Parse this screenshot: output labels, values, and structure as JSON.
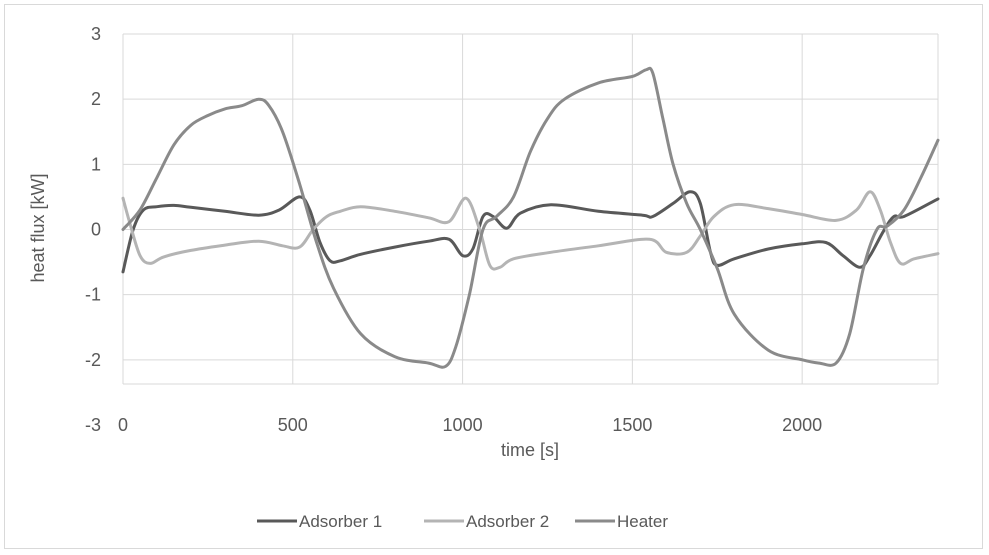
{
  "chart_data": {
    "type": "line",
    "title": "",
    "xlabel": "time [s]",
    "ylabel": "heat flux [kW]",
    "xlim": [
      0,
      2400
    ],
    "ylim": [
      -3,
      3
    ],
    "xticks": [
      0,
      500,
      1000,
      1500,
      2000
    ],
    "xtick_labels": [
      "0",
      "500",
      "1000",
      "1500",
      "2000"
    ],
    "yticks": [
      -3,
      -2,
      -1,
      0,
      1,
      2,
      3
    ],
    "ytick_labels": [
      "-3",
      "-2",
      "-1",
      "0",
      "1",
      "2",
      "3"
    ],
    "grid": true,
    "legend_position": "bottom",
    "series": [
      {
        "name": "Adsorber 1",
        "color": "#595959",
        "x": [
          0,
          30,
          60,
          100,
          150,
          200,
          300,
          400,
          460,
          520,
          550,
          580,
          610,
          640,
          700,
          800,
          900,
          960,
          1000,
          1030,
          1060,
          1090,
          1130,
          1170,
          1260,
          1400,
          1530,
          1560,
          1620,
          1670,
          1700,
          1730,
          1750,
          1800,
          1900,
          2000,
          2070,
          2120,
          2170,
          2200,
          2240,
          2270,
          2300,
          2400
        ],
        "y": [
          -0.65,
          0.0,
          0.3,
          0.35,
          0.37,
          0.34,
          0.28,
          0.22,
          0.3,
          0.5,
          0.3,
          -0.2,
          -0.48,
          -0.48,
          -0.38,
          -0.27,
          -0.18,
          -0.15,
          -0.4,
          -0.3,
          0.2,
          0.2,
          0.02,
          0.25,
          0.38,
          0.28,
          0.22,
          0.2,
          0.4,
          0.58,
          0.4,
          -0.35,
          -0.55,
          -0.45,
          -0.3,
          -0.22,
          -0.2,
          -0.4,
          -0.58,
          -0.4,
          -0.02,
          0.2,
          0.2,
          0.47
        ]
      },
      {
        "name": "Adsorber 2",
        "color": "#b4b4b4",
        "x": [
          0,
          20,
          50,
          80,
          120,
          200,
          300,
          400,
          470,
          520,
          560,
          600,
          640,
          700,
          800,
          900,
          960,
          1010,
          1050,
          1080,
          1110,
          1150,
          1260,
          1400,
          1550,
          1600,
          1660,
          1700,
          1740,
          1800,
          1900,
          2000,
          2100,
          2160,
          2200,
          2230,
          2260,
          2290,
          2330,
          2400
        ],
        "y": [
          0.48,
          0.1,
          -0.4,
          -0.52,
          -0.42,
          -0.32,
          -0.24,
          -0.18,
          -0.25,
          -0.27,
          0.0,
          0.2,
          0.28,
          0.35,
          0.28,
          0.18,
          0.12,
          0.48,
          0.0,
          -0.55,
          -0.58,
          -0.45,
          -0.35,
          -0.25,
          -0.15,
          -0.35,
          -0.35,
          -0.1,
          0.2,
          0.38,
          0.32,
          0.23,
          0.14,
          0.3,
          0.58,
          0.3,
          -0.2,
          -0.52,
          -0.45,
          -0.37
        ]
      },
      {
        "name": "Heater",
        "color": "#8a8a8a",
        "x": [
          0,
          50,
          100,
          150,
          200,
          250,
          300,
          350,
          400,
          430,
          470,
          520,
          570,
          620,
          700,
          800,
          900,
          950,
          980,
          1020,
          1060,
          1100,
          1150,
          1200,
          1250,
          1300,
          1400,
          1500,
          1540,
          1560,
          1590,
          1620,
          1660,
          1700,
          1750,
          1800,
          1900,
          2000,
          2050,
          2100,
          2140,
          2180,
          2220,
          2250,
          2300,
          2350,
          2400
        ],
        "y": [
          0.0,
          0.3,
          0.8,
          1.3,
          1.6,
          1.75,
          1.85,
          1.9,
          2.0,
          1.9,
          1.5,
          0.7,
          -0.2,
          -0.9,
          -1.6,
          -1.95,
          -2.05,
          -2.1,
          -1.8,
          -1.0,
          0.0,
          0.2,
          0.5,
          1.2,
          1.7,
          2.0,
          2.25,
          2.35,
          2.45,
          2.4,
          1.7,
          1.0,
          0.4,
          0.0,
          -0.6,
          -1.3,
          -1.85,
          -2.0,
          -2.05,
          -2.05,
          -1.6,
          -0.6,
          0.0,
          0.05,
          0.3,
          0.8,
          1.37
        ]
      }
    ]
  }
}
